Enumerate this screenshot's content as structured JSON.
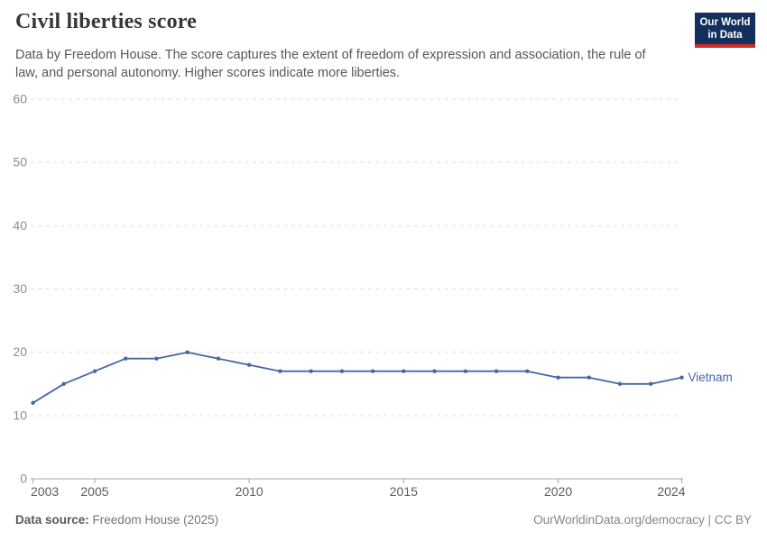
{
  "header": {
    "title": "Civil liberties score",
    "subtitle": "Data by Freedom House. The score captures the extent of freedom of expression and association, the rule of law, and personal autonomy. Higher scores indicate more liberties.",
    "logo": {
      "line1": "Our World",
      "line2": "in Data",
      "bg_color": "#12305b",
      "accent_color": "#cf2d23"
    }
  },
  "chart_data": {
    "type": "line",
    "title": "Civil liberties score",
    "xlabel": "",
    "ylabel": "",
    "xlim": [
      2003,
      2024
    ],
    "ylim": [
      0,
      60
    ],
    "x_ticks": [
      2003,
      2005,
      2010,
      2015,
      2020,
      2024
    ],
    "y_ticks": [
      0,
      10,
      20,
      30,
      40,
      50,
      60
    ],
    "grid": "horizontal-dashed",
    "legend_position": "end-of-line-label",
    "x": [
      2003,
      2004,
      2005,
      2006,
      2007,
      2008,
      2009,
      2010,
      2011,
      2012,
      2013,
      2014,
      2015,
      2016,
      2017,
      2018,
      2019,
      2020,
      2021,
      2022,
      2023,
      2024
    ],
    "series": [
      {
        "name": "Vietnam",
        "color": "#4766a4",
        "values": [
          12,
          15,
          17,
          19,
          19,
          20,
          19,
          18,
          17,
          17,
          17,
          17,
          17,
          17,
          17,
          17,
          17,
          16,
          16,
          15,
          15,
          16
        ]
      }
    ]
  },
  "footer": {
    "source_label": "Data source:",
    "source_value": "Freedom House (2025)",
    "credit": "OurWorldinData.org/democracy | CC BY"
  }
}
